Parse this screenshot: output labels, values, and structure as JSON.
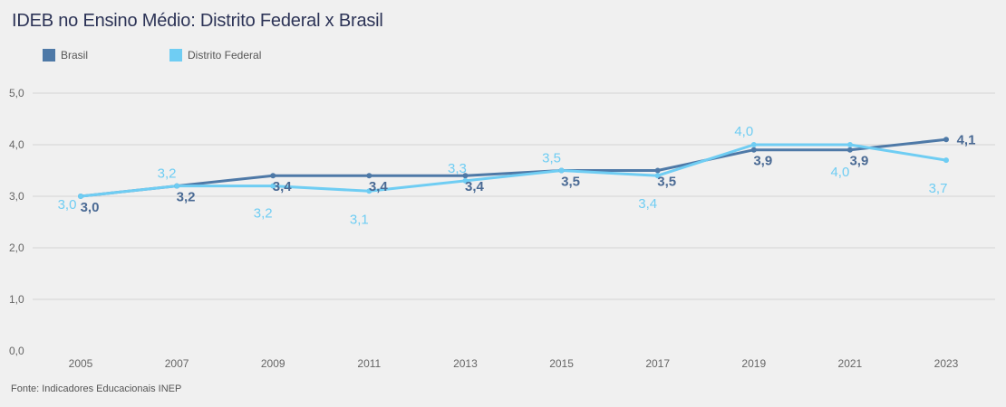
{
  "chart_data": {
    "type": "line",
    "title": "IDEB no Ensino Médio: Distrito Federal x Brasil",
    "xlabel": "",
    "ylabel": "",
    "categories": [
      "2005",
      "2007",
      "2009",
      "2011",
      "2013",
      "2015",
      "2017",
      "2019",
      "2021",
      "2023"
    ],
    "series": [
      {
        "name": "Brasil",
        "color": "#4e79a7",
        "values": [
          3.0,
          3.2,
          3.4,
          3.4,
          3.4,
          3.5,
          3.5,
          3.9,
          3.9,
          4.1
        ],
        "labels": [
          "3,0",
          "3,2",
          "3,4",
          "3,4",
          "3,4",
          "3,5",
          "3,5",
          "3,9",
          "3,9",
          "4,1"
        ]
      },
      {
        "name": "Distrito Federal",
        "color": "#6fcdf3",
        "values": [
          3.0,
          3.2,
          3.2,
          3.1,
          3.3,
          3.5,
          3.4,
          4.0,
          4.0,
          3.7
        ],
        "labels": [
          "3,0",
          "3,2",
          "3,2",
          "3,1",
          "3,3",
          "3,5",
          "3,4",
          "4,0",
          "4,0",
          "3,7"
        ]
      }
    ],
    "yticks": [
      0,
      1,
      2,
      3,
      4,
      5
    ],
    "ytick_labels": [
      "0,0",
      "1,0",
      "2,0",
      "3,0",
      "4,0",
      "5,0"
    ],
    "ylim": [
      0,
      5
    ],
    "grid": true,
    "legend_position": "top-left",
    "source": "Fonte: Indicadores Educacionais INEP"
  }
}
